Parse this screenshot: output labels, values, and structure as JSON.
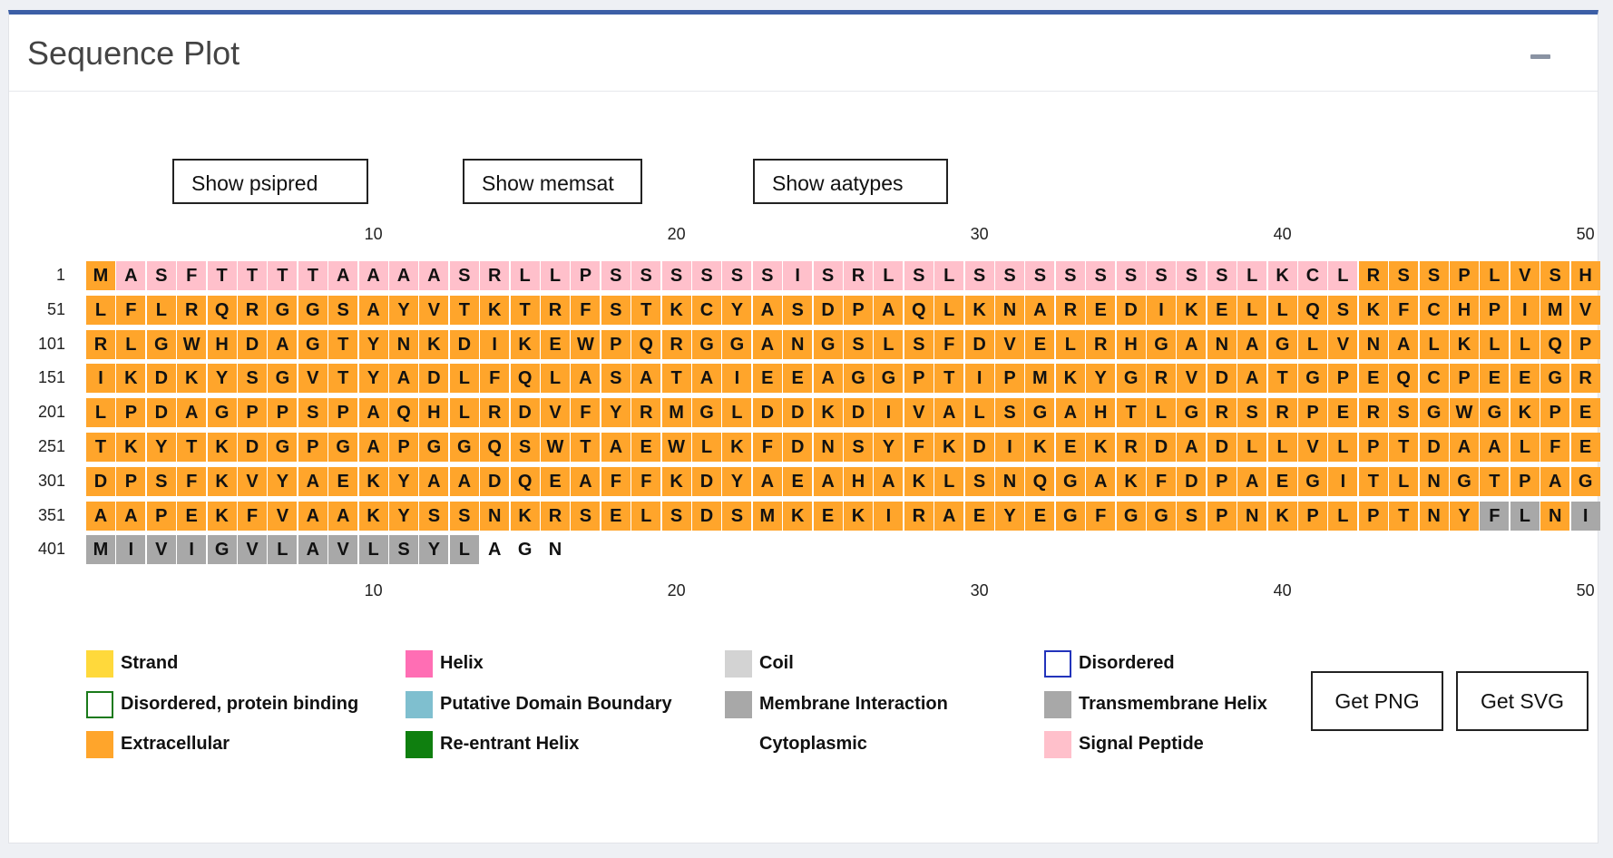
{
  "panel": {
    "title": "Sequence Plot"
  },
  "controls": [
    {
      "id": "psipred",
      "label": "Show psipred"
    },
    {
      "id": "memsat",
      "label": "Show memsat"
    },
    {
      "id": "aatypes",
      "label": "Show aatypes"
    }
  ],
  "axis_ticks": [
    "10",
    "20",
    "30",
    "40",
    "50"
  ],
  "sequence": "MASFTTTTAAAASRLLPSSSSSSISRLSLSSSSSSSSSLKCLRSSPLVSHLFLRQRGGSAYVTKTRFSTKCYASDPAQLKNAREDIKELLQSKFCHPIMVRLGWHDAGTYNKDIKEWPQRGGANGSLSFDVELRHGANAGLVNALKLLQPIKDKYSGVTYADLFQLASATAIEEAGGPTIPMKYGRVDATGPEQCPEEGRLPDAGPPSPAQHLRDVFYRMGLDDKDIVALSGAHTLGRSRPERSGWGKPETKYTKDGPGAPGGQSWTAEWLKFDNSYFKDIKEKRDADLLVLPTDAALFEDPSFKVYAEKYAADQEAFFKDYAEAHAKLSNQGAKFDPAEGITLNGTPAGAAPEKFVAAKYSSNKRSELSDSMKEKIRAEYEGFGGSPNKPLPTNYFLNIMIVIGVLAVLSYLAGN",
  "row_starts": [
    "1",
    "51",
    "101",
    "151",
    "201",
    "251",
    "301",
    "351",
    "401"
  ],
  "annotation_colors": {
    "signal": "#ffc0cb",
    "extracellular": "#ffa52b",
    "membrane": "#a8a8a8",
    "cytoplasmic": "#ffffff"
  },
  "annotation_segments": [
    {
      "type": "extracellular",
      "start": 1,
      "end": 1
    },
    {
      "type": "signal",
      "start": 2,
      "end": 42
    },
    {
      "type": "extracellular",
      "start": 43,
      "end": 396
    },
    {
      "type": "membrane",
      "start": 397,
      "end": 398
    },
    {
      "type": "extracellular",
      "start": 399,
      "end": 399
    },
    {
      "type": "membrane",
      "start": 400,
      "end": 413
    },
    {
      "type": "cytoplasmic",
      "start": 414,
      "end": 415
    }
  ],
  "legend": [
    {
      "label": "Strand",
      "fill": "#ffd93b",
      "border": "#ffd93b"
    },
    {
      "label": "Helix",
      "fill": "#ff6eb4",
      "border": "#ff6eb4"
    },
    {
      "label": "Coil",
      "fill": "#d3d3d3",
      "border": "#d3d3d3"
    },
    {
      "label": "Disordered",
      "fill": "#ffffff",
      "border": "#2233bb"
    },
    {
      "label": "Disordered, protein binding",
      "fill": "#ffffff",
      "border": "#1a7a1a"
    },
    {
      "label": "Putative Domain Boundary",
      "fill": "#7fbfcf",
      "border": "#7fbfcf"
    },
    {
      "label": "Membrane Interaction",
      "fill": "#a8a8a8",
      "border": "#a8a8a8"
    },
    {
      "label": "Transmembrane Helix",
      "fill": "#a8a8a8",
      "border": "#a8a8a8"
    },
    {
      "label": "Extracellular",
      "fill": "#ffa52b",
      "border": "#ffa52b"
    },
    {
      "label": "Re-entrant Helix",
      "fill": "#0f7f0f",
      "border": "#0f7f0f"
    },
    {
      "label": "Cytoplasmic",
      "fill": "#ffffff",
      "border": "#ffffff"
    },
    {
      "label": "Signal Peptide",
      "fill": "#ffc0cb",
      "border": "#ffc0cb"
    }
  ],
  "downloads": [
    {
      "label": "Get PNG"
    },
    {
      "label": "Get SVG"
    }
  ]
}
